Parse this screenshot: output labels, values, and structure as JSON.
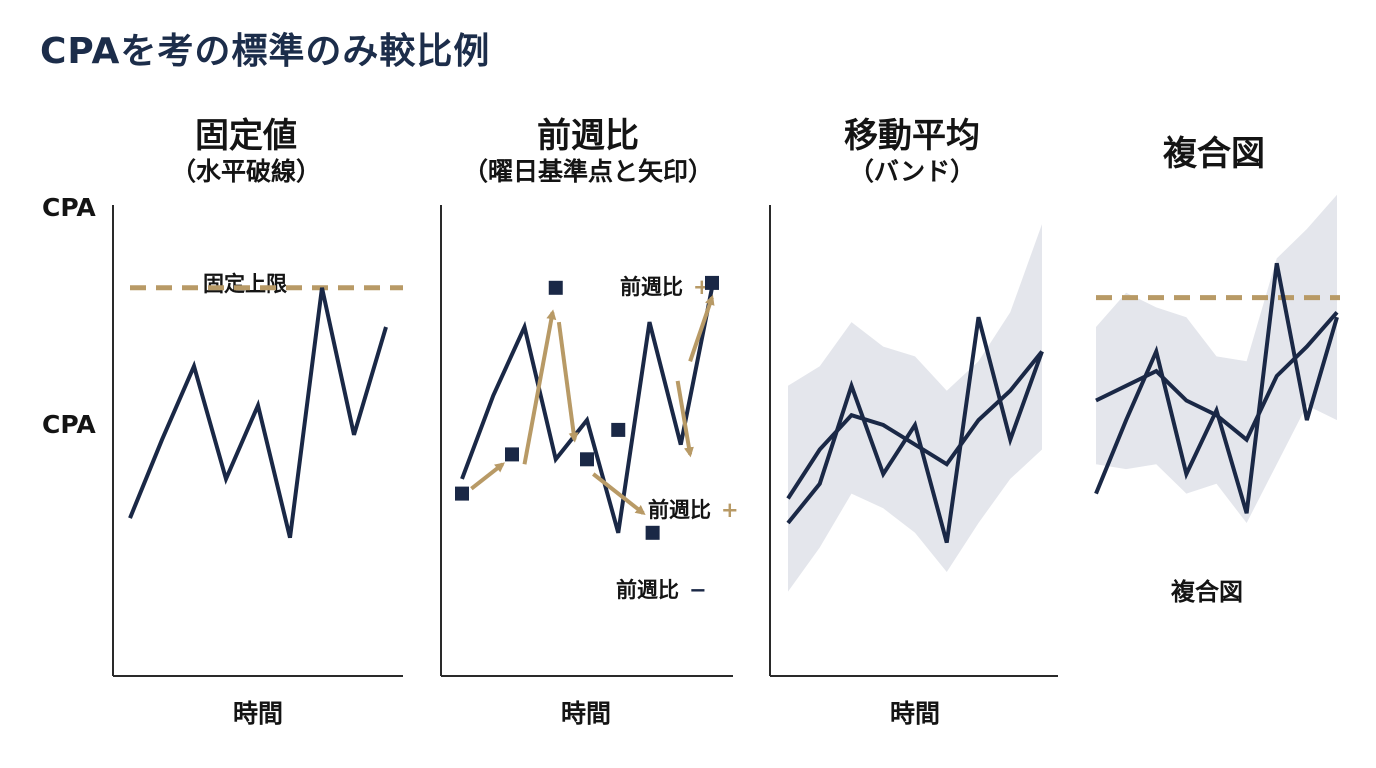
{
  "title": "CPAを考の標準のみ較比例",
  "colors": {
    "line": "#1a2846",
    "gold": "#b89a66",
    "band": "#e4e6ec",
    "axis": "#2a2a2a"
  },
  "y_axis": {
    "top_label": "CPA",
    "mid_label": "CPA"
  },
  "panels": [
    {
      "title": "固定値",
      "subtitle": "（水平破線）",
      "xlabel": "時間"
    },
    {
      "title": "前週比",
      "subtitle": "（曜日基準点と矢印）",
      "xlabel": "時間"
    },
    {
      "title": "移動平均",
      "subtitle": "（バンド）",
      "xlabel": "時間"
    },
    {
      "title": "複合図",
      "subtitle": "",
      "xlabel": ""
    }
  ],
  "annotations": {
    "fixed_limit": "固定上限",
    "wow_plus_top": {
      "text": "前週比",
      "sign": "+"
    },
    "wow_plus_mid": {
      "text": "前週比",
      "sign": "+"
    },
    "wow_minus": {
      "text": "前週比",
      "sign": "−"
    },
    "composite_label": "複合図"
  },
  "chart_data": [
    {
      "type": "line",
      "title": "固定値",
      "xlabel": "時間",
      "ylabel": "CPA",
      "ylim": [
        0,
        100
      ],
      "series": [
        {
          "values": [
            31,
            47,
            62,
            39,
            54,
            27,
            78,
            48,
            70
          ]
        }
      ],
      "reference_line": {
        "value": 78,
        "label": "固定上限",
        "style": "dashed"
      }
    },
    {
      "type": "line",
      "title": "前週比",
      "xlabel": "時間",
      "ylabel": "CPA",
      "ylim": [
        0,
        100
      ],
      "series": [
        {
          "values": [
            39,
            56,
            70,
            43,
            51,
            28,
            71,
            46,
            78
          ]
        }
      ],
      "markers": [
        {
          "x": 0,
          "y": 36
        },
        {
          "x": 1.6,
          "y": 44
        },
        {
          "x": 3.0,
          "y": 78
        },
        {
          "x": 4.0,
          "y": 43
        },
        {
          "x": 5.0,
          "y": 49
        },
        {
          "x": 6.1,
          "y": 28
        },
        {
          "x": 8.0,
          "y": 79
        }
      ],
      "arrows": [
        {
          "from": [
            0.3,
            37
          ],
          "to": [
            1.3,
            42
          ]
        },
        {
          "from": [
            2.0,
            42
          ],
          "to": [
            2.9,
            73
          ]
        },
        {
          "from": [
            3.1,
            71
          ],
          "to": [
            3.6,
            47
          ]
        },
        {
          "from": [
            4.2,
            40
          ],
          "to": [
            5.8,
            32
          ]
        },
        {
          "from": [
            7.3,
            63
          ],
          "to": [
            8.0,
            76
          ]
        },
        {
          "from": [
            6.9,
            59
          ],
          "to": [
            7.3,
            44
          ]
        }
      ]
    },
    {
      "type": "line",
      "title": "移動平均",
      "xlabel": "時間",
      "ylabel": "CPA",
      "ylim": [
        0,
        100
      ],
      "series": [
        {
          "values": [
            30,
            38,
            58,
            40,
            50,
            26,
            72,
            47,
            65
          ]
        },
        {
          "values": [
            35,
            45,
            52,
            50,
            46,
            42,
            51,
            57,
            65
          ]
        }
      ],
      "band": {
        "upper": [
          58,
          62,
          71,
          66,
          64,
          57,
          63,
          73,
          91
        ],
        "lower": [
          16,
          25,
          36,
          33,
          28,
          20,
          30,
          39,
          45
        ]
      }
    },
    {
      "type": "line",
      "title": "複合図",
      "ylim": [
        0,
        100
      ],
      "series": [
        {
          "values": [
            36,
            51,
            65,
            40,
            53,
            32,
            83,
            51,
            72
          ]
        },
        {
          "values": [
            55,
            58,
            61,
            55,
            52,
            47,
            60,
            66,
            73
          ]
        }
      ],
      "band": {
        "upper": [
          70,
          77,
          74,
          72,
          64,
          63,
          84,
          90,
          97
        ],
        "lower": [
          42,
          41,
          42,
          36,
          38,
          30,
          42,
          54,
          51
        ]
      },
      "reference_line": {
        "value": 76,
        "style": "dashed"
      }
    }
  ]
}
